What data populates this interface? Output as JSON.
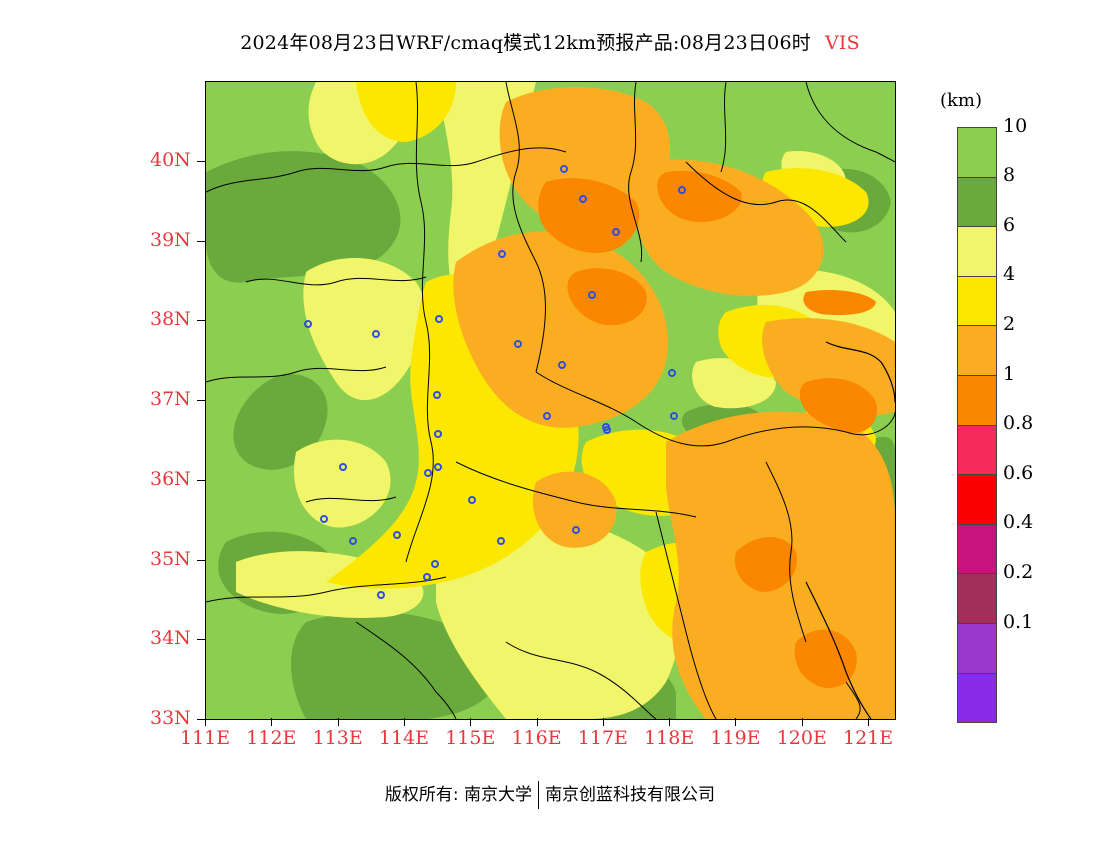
{
  "header": {
    "title": "2024年08月23日WRF/cmaq模式12km预报产品:08月23日06时",
    "variable": "VIS"
  },
  "axes": {
    "latitudes": [
      "40N",
      "39N",
      "38N",
      "37N",
      "36N",
      "35N",
      "34N",
      "33N"
    ],
    "longitudes": [
      "111E",
      "112E",
      "113E",
      "114E",
      "115E",
      "116E",
      "117E",
      "118E",
      "119E",
      "120E",
      "121E"
    ]
  },
  "legend": {
    "unit": "(km)",
    "labels": [
      "10",
      "8",
      "6",
      "4",
      "2",
      "1",
      "0.8",
      "0.6",
      "0.4",
      "0.2",
      "0.1"
    ],
    "colors": [
      "#8ccf50",
      "#6aa93c",
      "#f0f56a",
      "#fbe700",
      "#fbad22",
      "#fb8600",
      "#f42b59",
      "#fb0000",
      "#c8137f",
      "#a32e5a",
      "#9a37cc",
      "#8a2bea"
    ]
  },
  "map": {
    "colors": {
      "green_light": "#8ccf50",
      "green_dark": "#6aa93c",
      "yellow_light": "#f0f56a",
      "yellow": "#fbe700",
      "orange_light": "#fbad22",
      "orange": "#fb8600"
    },
    "city_marker_color": "#2f4de0",
    "city_count": 30
  },
  "footer": {
    "left": "版权所有: 南京大学",
    "right": "南京创蓝科技有限公司"
  }
}
